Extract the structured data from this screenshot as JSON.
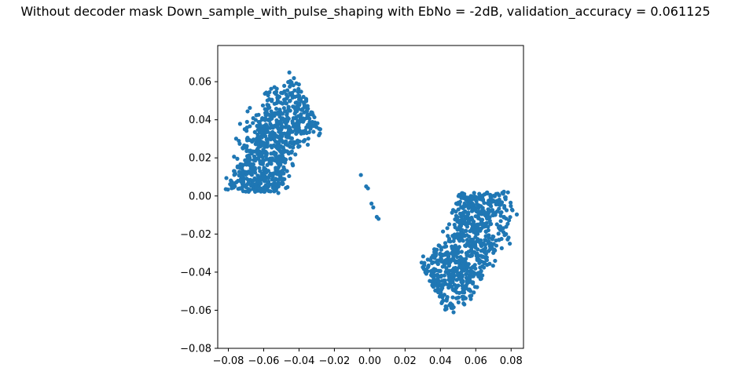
{
  "chart_data": {
    "type": "scatter",
    "title": "Without decoder mask Down_sample_with_pulse_shaping with EbNo = -2dB, validation_accuracy = 0.061125",
    "xlabel": "",
    "ylabel": "",
    "xlim": [
      -0.086,
      0.087
    ],
    "ylim": [
      -0.08,
      0.079
    ],
    "xticks": [
      -0.08,
      -0.06,
      -0.04,
      -0.02,
      0.0,
      0.02,
      0.04,
      0.06,
      0.08
    ],
    "xtick_labels": [
      "−0.08",
      "−0.06",
      "−0.04",
      "−0.02",
      "0.00",
      "0.02",
      "0.04",
      "0.06",
      "0.08"
    ],
    "yticks": [
      -0.08,
      -0.06,
      -0.04,
      -0.02,
      0.0,
      0.02,
      0.04,
      0.06
    ],
    "ytick_labels": [
      "−0.08",
      "−0.06",
      "−0.04",
      "−0.02",
      "0.00",
      "0.02",
      "0.04",
      "0.06"
    ],
    "grid": false,
    "marker_color": "#1f77b4",
    "series": [
      {
        "clusters": [
          {
            "center": [
              -0.01,
              0.0
            ],
            "angle_deg": [
              117,
              178
            ],
            "radii": [
              0.046,
              0.055,
              0.064
            ],
            "jitter": 0.004,
            "points_per_ring": 260
          },
          {
            "center": [
              0.01,
              0.0
            ],
            "angle_deg": [
              -62,
              2
            ],
            "radii": [
              0.046,
              0.055,
              0.064
            ],
            "jitter": 0.004,
            "points_per_ring": 260
          }
        ],
        "center_points": [
          [
            -0.005,
            0.011
          ],
          [
            -0.002,
            0.005
          ],
          [
            -0.001,
            0.004
          ],
          [
            0.001,
            -0.004
          ],
          [
            0.002,
            -0.006
          ],
          [
            0.004,
            -0.011
          ],
          [
            0.005,
            -0.012
          ]
        ]
      }
    ]
  }
}
